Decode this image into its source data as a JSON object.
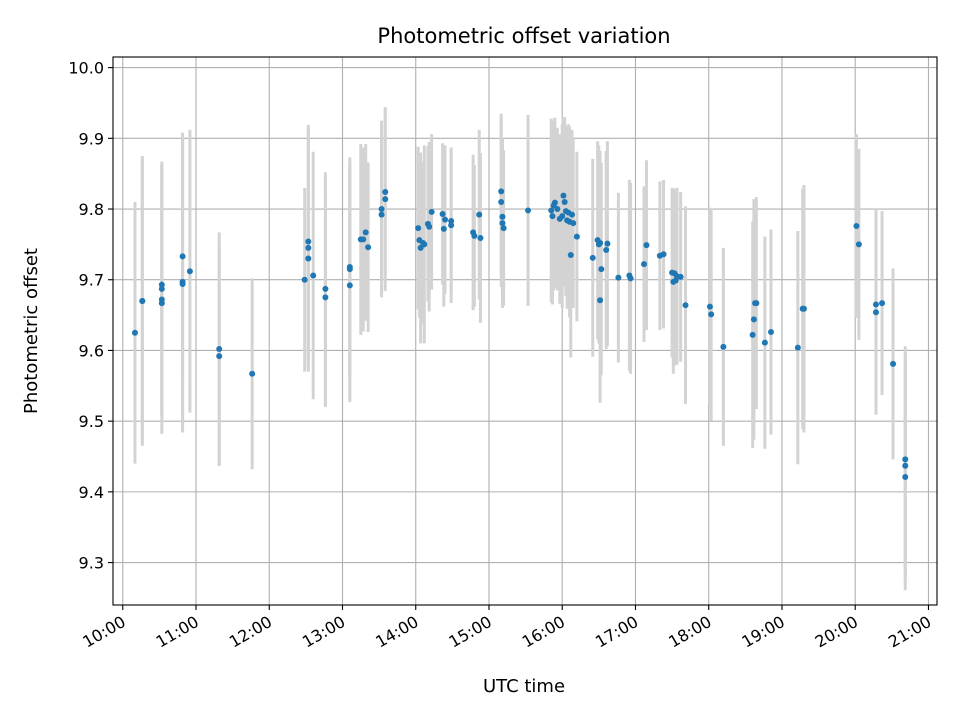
{
  "chart_data": {
    "type": "scatter",
    "title": "Photometric offset variation",
    "xlabel": "UTC time",
    "ylabel": "Photometric offset",
    "x_unit": "hours UTC",
    "xlim": [
      "09:52",
      "21:07"
    ],
    "ylim": [
      9.24,
      10.015
    ],
    "x_ticks": [
      "10:00",
      "11:00",
      "12:00",
      "13:00",
      "14:00",
      "15:00",
      "16:00",
      "17:00",
      "18:00",
      "19:00",
      "20:00",
      "21:00"
    ],
    "y_ticks": [
      "9.3",
      "9.4",
      "9.5",
      "9.6",
      "9.7",
      "9.8",
      "9.9",
      "10.0"
    ],
    "grid": true,
    "point_color": "#1f77b4",
    "errorbar_color": "#d3d3d3",
    "points": [
      [
        "10:10",
        9.625,
        0.185
      ],
      [
        "10:16",
        9.67,
        0.205
      ],
      [
        "10:16",
        9.67,
        0.2
      ],
      [
        "10:32",
        9.693,
        0.17
      ],
      [
        "10:32",
        9.687,
        0.18
      ],
      [
        "10:32",
        9.672,
        0.19
      ],
      [
        "10:32",
        9.667,
        0.16
      ],
      [
        "10:49",
        9.733,
        0.175
      ],
      [
        "10:49",
        9.697,
        0.2
      ],
      [
        "10:49",
        9.694,
        0.21
      ],
      [
        "10:55",
        9.712,
        0.2
      ],
      [
        "11:19",
        9.602,
        0.165
      ],
      [
        "11:19",
        9.592,
        0.155
      ],
      [
        "11:46",
        9.567,
        0.135
      ],
      [
        "12:29",
        9.7,
        0.13
      ],
      [
        "12:32",
        9.754,
        0.165
      ],
      [
        "12:32",
        9.745,
        0.17
      ],
      [
        "12:32",
        9.73,
        0.16
      ],
      [
        "12:36",
        9.706,
        0.175
      ],
      [
        "12:46",
        9.687,
        0.165
      ],
      [
        "12:46",
        9.675,
        0.155
      ],
      [
        "13:06",
        9.718,
        0.155
      ],
      [
        "13:06",
        9.715,
        0.15
      ],
      [
        "13:06",
        9.692,
        0.165
      ],
      [
        "13:15",
        9.757,
        0.135
      ],
      [
        "13:17",
        9.757,
        0.13
      ],
      [
        "13:19",
        9.767,
        0.125
      ],
      [
        "13:21",
        9.746,
        0.12
      ],
      [
        "13:32",
        9.8,
        0.125
      ],
      [
        "13:32",
        9.792,
        0.115
      ],
      [
        "13:35",
        9.824,
        0.12
      ],
      [
        "13:35",
        9.814,
        0.13
      ],
      [
        "14:02",
        9.773,
        0.115
      ],
      [
        "14:03",
        9.756,
        0.11
      ],
      [
        "14:04",
        9.745,
        0.135
      ],
      [
        "14:06",
        9.752,
        0.115
      ],
      [
        "14:07",
        9.75,
        0.14
      ],
      [
        "14:10",
        9.779,
        0.11
      ],
      [
        "14:11",
        9.775,
        0.12
      ],
      [
        "14:13",
        9.796,
        0.11
      ],
      [
        "14:22",
        9.793,
        0.1
      ],
      [
        "14:23",
        9.772,
        0.11
      ],
      [
        "14:24",
        9.785,
        0.105
      ],
      [
        "14:29",
        9.783,
        0.1
      ],
      [
        "14:29",
        9.777,
        0.11
      ],
      [
        "14:47",
        9.767,
        0.11
      ],
      [
        "14:48",
        9.762,
        0.1
      ],
      [
        "14:52",
        9.792,
        0.12
      ],
      [
        "14:53",
        9.759,
        0.12
      ],
      [
        "15:10",
        9.825,
        0.11
      ],
      [
        "15:10",
        9.81,
        0.12
      ],
      [
        "15:11",
        9.789,
        0.11
      ],
      [
        "15:11",
        9.78,
        0.12
      ],
      [
        "15:12",
        9.773,
        0.11
      ],
      [
        "15:32",
        9.798,
        0.135
      ],
      [
        "15:51",
        9.798,
        0.13
      ],
      [
        "15:52",
        9.79,
        0.125
      ],
      [
        "15:53",
        9.805,
        0.12
      ],
      [
        "15:54",
        9.809,
        0.12
      ],
      [
        "15:56",
        9.8,
        0.115
      ],
      [
        "15:58",
        9.786,
        0.12
      ],
      [
        "16:00",
        9.79,
        0.13
      ],
      [
        "16:01",
        9.819,
        0.11
      ],
      [
        "16:02",
        9.81,
        0.12
      ],
      [
        "16:03",
        9.797,
        0.12
      ],
      [
        "16:04",
        9.784,
        0.125
      ],
      [
        "16:05",
        9.795,
        0.125
      ],
      [
        "16:06",
        9.782,
        0.135
      ],
      [
        "16:07",
        9.735,
        0.145
      ],
      [
        "16:08",
        9.792,
        0.12
      ],
      [
        "16:09",
        9.78,
        0.12
      ],
      [
        "16:12",
        9.761,
        0.12
      ],
      [
        "16:25",
        9.731,
        0.14
      ],
      [
        "16:29",
        9.756,
        0.14
      ],
      [
        "16:30",
        9.75,
        0.14
      ],
      [
        "16:31",
        9.752,
        0.13
      ],
      [
        "16:31",
        9.671,
        0.145
      ],
      [
        "16:32",
        9.715,
        0.15
      ],
      [
        "16:36",
        9.742,
        0.14
      ],
      [
        "16:37",
        9.751,
        0.145
      ],
      [
        "16:46",
        9.703,
        0.12
      ],
      [
        "16:55",
        9.706,
        0.135
      ],
      [
        "16:56",
        9.702,
        0.135
      ],
      [
        "17:07",
        9.722,
        0.11
      ],
      [
        "17:09",
        9.749,
        0.12
      ],
      [
        "17:20",
        9.734,
        0.105
      ],
      [
        "17:23",
        9.736,
        0.105
      ],
      [
        "17:30",
        9.71,
        0.12
      ],
      [
        "17:31",
        9.697,
        0.13
      ],
      [
        "17:32",
        9.709,
        0.12
      ],
      [
        "17:33",
        9.699,
        0.12
      ],
      [
        "17:34",
        9.705,
        0.125
      ],
      [
        "17:37",
        9.704,
        0.12
      ],
      [
        "17:41",
        9.664,
        0.14
      ],
      [
        "18:01",
        9.662,
        0.14
      ],
      [
        "18:02",
        9.651,
        0.15
      ],
      [
        "18:12",
        9.605,
        0.14
      ],
      [
        "18:36",
        9.622,
        0.16
      ],
      [
        "18:37",
        9.644,
        0.17
      ],
      [
        "18:38",
        9.667,
        0.145
      ],
      [
        "18:39",
        9.667,
        0.15
      ],
      [
        "18:46",
        9.611,
        0.15
      ],
      [
        "18:51",
        9.626,
        0.145
      ],
      [
        "19:13",
        9.604,
        0.165
      ],
      [
        "19:17",
        9.659,
        0.17
      ],
      [
        "19:18",
        9.659,
        0.175
      ],
      [
        "20:01",
        9.776,
        0.13
      ],
      [
        "20:03",
        9.75,
        0.135
      ],
      [
        "20:17",
        9.665,
        0.135
      ],
      [
        "20:17",
        9.654,
        0.145
      ],
      [
        "20:22",
        9.667,
        0.13
      ],
      [
        "20:31",
        9.581,
        0.135
      ],
      [
        "20:41",
        9.446,
        0.16
      ],
      [
        "20:41",
        9.437,
        0.16
      ],
      [
        "20:41",
        9.421,
        0.16
      ]
    ]
  }
}
